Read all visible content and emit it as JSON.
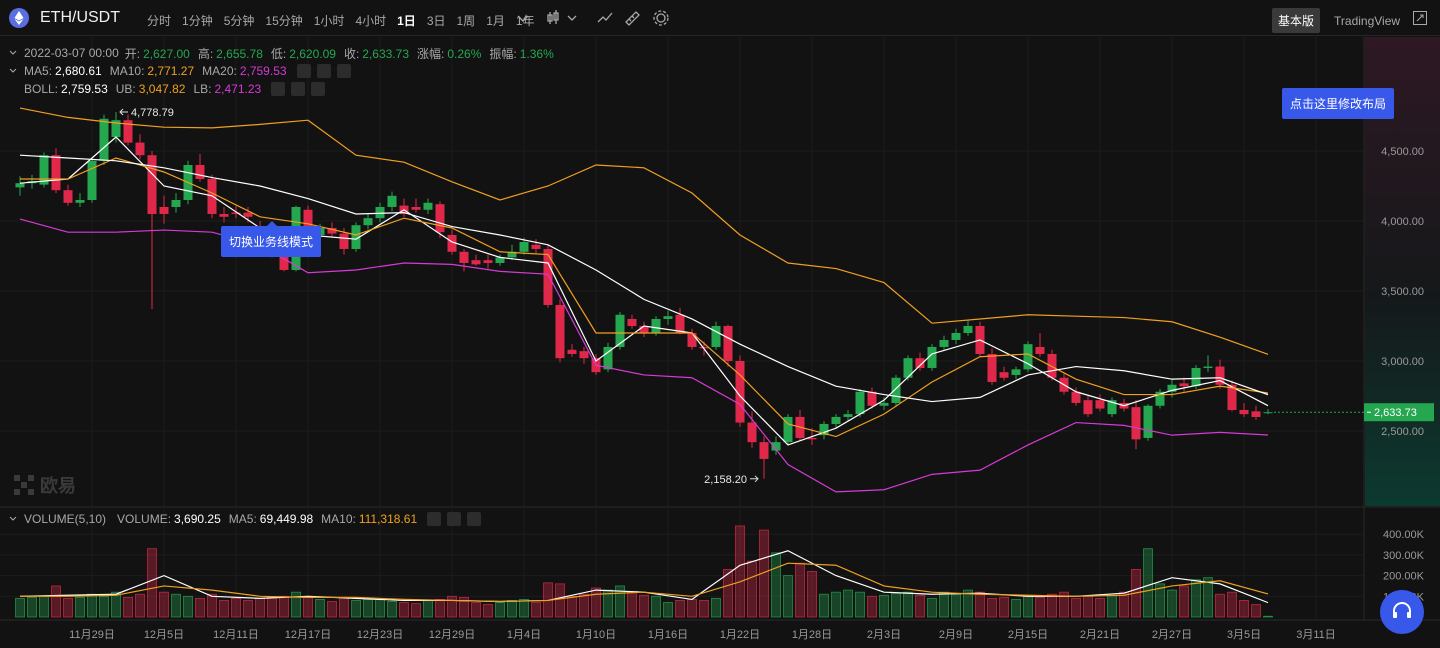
{
  "header": {
    "symbol": "ETH/USDT",
    "intervals": [
      "分时",
      "1分钟",
      "5分钟",
      "15分钟",
      "1小时",
      "4小时",
      "1日",
      "3日",
      "1周",
      "1月",
      "1年"
    ],
    "active_interval": "1日",
    "modes": [
      "基本版",
      "TradingView"
    ],
    "active_mode": "基本版"
  },
  "info": {
    "date": "2022-03-07 00:00",
    "fields": [
      {
        "label": "开:",
        "value": "2,627.00"
      },
      {
        "label": "高:",
        "value": "2,655.78"
      },
      {
        "label": "低:",
        "value": "2,620.09"
      },
      {
        "label": "收:",
        "value": "2,633.73"
      },
      {
        "label": "涨幅:",
        "value": "0.26%"
      },
      {
        "label": "振幅:",
        "value": "1.36%"
      }
    ]
  },
  "tooltips": [
    "点击这里修改布局",
    "切换业务线模式"
  ],
  "watermark": "欧易",
  "chart_data": [
    {
      "type": "candlestick",
      "up_color": "#25a750",
      "down_color": "#e0294a",
      "open": [
        4240,
        4270,
        4260,
        4470,
        4220,
        4130,
        4150,
        4430,
        4600,
        4720,
        4560,
        4470,
        4100,
        4100,
        4150,
        4400,
        4300,
        4050,
        4060,
        4060,
        3950,
        3870,
        3780,
        3650,
        4080,
        3900,
        3950,
        3910,
        3800,
        3970,
        4020,
        4100,
        4110,
        4100,
        4080,
        4120,
        3900,
        3780,
        3720,
        3720,
        3700,
        3740,
        3780,
        3830,
        3800,
        3400,
        3080,
        3070,
        3020,
        2940,
        3100,
        3300,
        3250,
        3200,
        3300,
        3330,
        3200,
        3100,
        3100,
        3250,
        3000,
        2560,
        2420,
        2360,
        2420,
        2600,
        2450,
        2470,
        2550,
        2600,
        2620,
        2780,
        2680,
        2700,
        2880,
        3020,
        2950,
        3100,
        3150,
        3200,
        3250,
        3050,
        2920,
        2900,
        2940,
        3100,
        3050,
        2880,
        2780,
        2720,
        2720,
        2620,
        2700,
        2670,
        2450,
        2680,
        2780,
        2840,
        2820,
        2950,
        2960,
        2830,
        2650,
        2640,
        2627
      ],
      "high": [
        4320,
        4330,
        4490,
        4520,
        4260,
        4200,
        4450,
        4760,
        4778.79,
        4760,
        4620,
        4500,
        4180,
        4200,
        4430,
        4480,
        4330,
        4100,
        4110,
        4100,
        4000,
        3920,
        3850,
        4110,
        4110,
        3980,
        3990,
        3950,
        3990,
        4050,
        4130,
        4210,
        4160,
        4160,
        4160,
        4140,
        3940,
        3800,
        3760,
        3760,
        3760,
        3830,
        3880,
        3870,
        3830,
        3440,
        3120,
        3100,
        3050,
        3130,
        3350,
        3330,
        3280,
        3320,
        3360,
        3380,
        3230,
        3140,
        3280,
        3260,
        3040,
        2640,
        2460,
        2460,
        2620,
        2650,
        2520,
        2570,
        2620,
        2650,
        2800,
        2810,
        2740,
        2900,
        3040,
        3060,
        3120,
        3180,
        3230,
        3290,
        3280,
        3090,
        2960,
        2960,
        3140,
        3200,
        3080,
        2910,
        2810,
        2750,
        2760,
        2740,
        2730,
        2720,
        2690,
        2800,
        2870,
        2880,
        2970,
        3040,
        3010,
        2860,
        2700,
        2680,
        2655.78
      ],
      "low": [
        4180,
        4230,
        4240,
        4200,
        4110,
        4100,
        4130,
        4400,
        4560,
        4540,
        4440,
        3370,
        3980,
        4060,
        4120,
        4280,
        4020,
        3990,
        4020,
        3990,
        3820,
        3740,
        3640,
        3640,
        3880,
        3860,
        3880,
        3760,
        3780,
        3940,
        3990,
        4070,
        4030,
        4060,
        4050,
        3880,
        3760,
        3640,
        3680,
        3660,
        3680,
        3720,
        3760,
        3770,
        3380,
        2990,
        3030,
        2980,
        2900,
        2920,
        3080,
        3230,
        3170,
        3180,
        3260,
        3190,
        3080,
        3040,
        3080,
        2960,
        2530,
        2380,
        2158.2,
        2330,
        2400,
        2430,
        2400,
        2440,
        2520,
        2570,
        2600,
        2660,
        2650,
        2680,
        2860,
        2930,
        2930,
        3080,
        3120,
        3180,
        3030,
        2830,
        2860,
        2870,
        2920,
        3030,
        2860,
        2760,
        2680,
        2600,
        2640,
        2600,
        2640,
        2370,
        2430,
        2660,
        2740,
        2780,
        2800,
        2920,
        2800,
        2640,
        2600,
        2580,
        2620.09
      ],
      "close": [
        4270,
        4285,
        4470,
        4220,
        4130,
        4150,
        4430,
        4730,
        4720,
        4560,
        4470,
        4050,
        4050,
        4150,
        4400,
        4300,
        4050,
        4030,
        4050,
        4030,
        3850,
        3780,
        3650,
        4100,
        3900,
        3950,
        3910,
        3800,
        3970,
        4020,
        4100,
        4180,
        4050,
        4080,
        4130,
        3920,
        3780,
        3700,
        3690,
        3700,
        3740,
        3780,
        3850,
        3800,
        3400,
        3020,
        3050,
        3020,
        2920,
        3100,
        3330,
        3250,
        3200,
        3300,
        3320,
        3200,
        3100,
        3090,
        3250,
        3000,
        2560,
        2420,
        2300,
        2420,
        2600,
        2450,
        2440,
        2550,
        2600,
        2620,
        2780,
        2680,
        2700,
        2880,
        3020,
        2950,
        3100,
        3150,
        3200,
        3250,
        3050,
        2850,
        2880,
        2940,
        3120,
        3050,
        2880,
        2780,
        2700,
        2620,
        2660,
        2720,
        2660,
        2440,
        2680,
        2780,
        2830,
        2820,
        2950,
        2960,
        2830,
        2650,
        2620,
        2600,
        2633.73
      ],
      "xticks": [
        {
          "value": 6,
          "label": "11月29日"
        },
        {
          "value": 12,
          "label": "12月5日"
        },
        {
          "value": 18,
          "label": "12月11日"
        },
        {
          "value": 24,
          "label": "12月17日"
        },
        {
          "value": 30,
          "label": "12月23日"
        },
        {
          "value": 36,
          "label": "12月29日"
        },
        {
          "value": 42,
          "label": "1月4日"
        },
        {
          "value": 48,
          "label": "1月10日"
        },
        {
          "value": 54,
          "label": "1月16日"
        },
        {
          "value": 60,
          "label": "1月22日"
        },
        {
          "value": 66,
          "label": "1月28日"
        },
        {
          "value": 72,
          "label": "2月3日"
        },
        {
          "value": 78,
          "label": "2月9日"
        },
        {
          "value": 84,
          "label": "2月15日"
        },
        {
          "value": 90,
          "label": "2月21日"
        },
        {
          "value": 96,
          "label": "2月27日"
        },
        {
          "value": 102,
          "label": "3月5日"
        },
        {
          "value": 108,
          "label": "3月11日"
        }
      ],
      "ylim": [
        1971,
        5293
      ],
      "yticks": [
        {
          "value": 2500,
          "label": "2,500.00"
        },
        {
          "value": 3000,
          "label": "3,000.00"
        },
        {
          "value": 3500,
          "label": "3,500.00"
        },
        {
          "value": 4000,
          "label": "4,000.00"
        },
        {
          "value": 4500,
          "label": "4,500.00"
        }
      ],
      "grid": true,
      "max_label": "4,778.79",
      "min_label": "2,158.20",
      "last_price": {
        "value": 2633.73,
        "label": "2,633.73"
      },
      "overlay_x": [
        0,
        4,
        8,
        12,
        16,
        20,
        24,
        28,
        32,
        36,
        40,
        44,
        48,
        52,
        56,
        60,
        64,
        68,
        72,
        76,
        80,
        84,
        88,
        92,
        96,
        100,
        104
      ],
      "series": [
        {
          "name": "MA5:",
          "group": "ma",
          "color": "#ffffff",
          "label": "2,680.61",
          "values": [
            4270,
            4300,
            4600,
            4250,
            4180,
            3950,
            3900,
            3870,
            4080,
            3850,
            3740,
            3700,
            3000,
            3250,
            3200,
            2750,
            2400,
            2520,
            2720,
            3050,
            3150,
            2980,
            2780,
            2680,
            2790,
            2860,
            2680.61
          ]
        },
        {
          "name": "MA10:",
          "group": "ma",
          "color": "#f0a020",
          "label": "2,771.27",
          "values": [
            4300,
            4300,
            4450,
            4350,
            4200,
            4030,
            3980,
            3900,
            4020,
            3950,
            3780,
            3760,
            3200,
            3200,
            3200,
            2900,
            2550,
            2460,
            2620,
            2850,
            3030,
            3050,
            2870,
            2760,
            2760,
            2820,
            2771.27
          ]
        },
        {
          "name": "MA20:",
          "group": "ma",
          "color": "#d63ad6",
          "label": "2,759.53"
        },
        {
          "name": "BOLL:",
          "group": "boll",
          "color": "#ffffff",
          "label": "2,759.53",
          "values": [
            4470,
            4450,
            4430,
            4380,
            4310,
            4250,
            4160,
            4050,
            4060,
            3960,
            3900,
            3830,
            3650,
            3440,
            3300,
            3120,
            2960,
            2820,
            2760,
            2710,
            2740,
            2900,
            2960,
            2930,
            2870,
            2880,
            2759.53
          ]
        },
        {
          "name": "UB:",
          "group": "boll",
          "color": "#f0a020",
          "label": "3,047.82",
          "values": [
            4807,
            4740,
            4700,
            4670,
            4665,
            4690,
            4720,
            4470,
            4420,
            4280,
            4150,
            4250,
            4400,
            4380,
            4200,
            3900,
            3700,
            3660,
            3560,
            3270,
            3300,
            3330,
            3320,
            3310,
            3280,
            3170,
            3047.82
          ]
        },
        {
          "name": "LB:",
          "group": "boll",
          "color": "#d63ad6",
          "label": "2,471.23",
          "values": [
            4014,
            3920,
            3920,
            3935,
            3920,
            3830,
            3630,
            3650,
            3700,
            3690,
            3640,
            3620,
            2970,
            2900,
            2880,
            2690,
            2260,
            2065,
            2080,
            2190,
            2220,
            2400,
            2560,
            2540,
            2470,
            2490,
            2471.23
          ]
        }
      ]
    },
    {
      "type": "bar",
      "title": "VOLUME(5,10)",
      "name": "VOLUME:",
      "label": "3,690.25",
      "values": [
        90000,
        95000,
        100000,
        150000,
        90000,
        95000,
        110000,
        100000,
        120000,
        95000,
        110000,
        330000,
        120000,
        110000,
        100000,
        90000,
        110000,
        80000,
        90000,
        80000,
        90000,
        95000,
        100000,
        120000,
        100000,
        85000,
        75000,
        95000,
        80000,
        85000,
        90000,
        75000,
        70000,
        65000,
        80000,
        85000,
        100000,
        95000,
        70000,
        60000,
        70000,
        80000,
        85000,
        70000,
        165000,
        160000,
        100000,
        110000,
        140000,
        130000,
        150000,
        120000,
        105000,
        100000,
        70000,
        80000,
        85000,
        80000,
        90000,
        230000,
        440000,
        270000,
        420000,
        310000,
        200000,
        260000,
        220000,
        110000,
        120000,
        130000,
        120000,
        100000,
        105000,
        115000,
        120000,
        105000,
        90000,
        120000,
        110000,
        130000,
        120000,
        90000,
        95000,
        85000,
        100000,
        95000,
        110000,
        120000,
        90000,
        100000,
        90000,
        105000,
        120000,
        230000,
        330000,
        160000,
        130000,
        150000,
        180000,
        190000,
        110000,
        120000,
        80000,
        60000,
        3690.25
      ],
      "ylim": [
        0,
        517000
      ],
      "yticks": [
        {
          "value": 100000,
          "label": "100.00K"
        },
        {
          "value": 200000,
          "label": "200.00K"
        },
        {
          "value": 300000,
          "label": "300.00K"
        },
        {
          "value": 400000,
          "label": "400.00K"
        }
      ],
      "series": [
        {
          "name": "MA5:",
          "color": "#ffffff",
          "label": "69,449.98",
          "values": [
            100000,
            105000,
            110000,
            200000,
            100000,
            90000,
            100000,
            90000,
            80000,
            80000,
            75000,
            80000,
            130000,
            120000,
            85000,
            250000,
            320000,
            200000,
            120000,
            110000,
            115000,
            100000,
            100000,
            115000,
            190000,
            160000,
            69449.98
          ]
        },
        {
          "name": "MA10:",
          "color": "#f0a020",
          "label": "111,318.61",
          "values": [
            100000,
            100000,
            105000,
            150000,
            130000,
            100000,
            95000,
            95000,
            85000,
            80000,
            75000,
            80000,
            110000,
            120000,
            100000,
            170000,
            260000,
            250000,
            150000,
            120000,
            110000,
            105000,
            100000,
            105000,
            150000,
            175000,
            111318.61
          ]
        }
      ]
    }
  ]
}
